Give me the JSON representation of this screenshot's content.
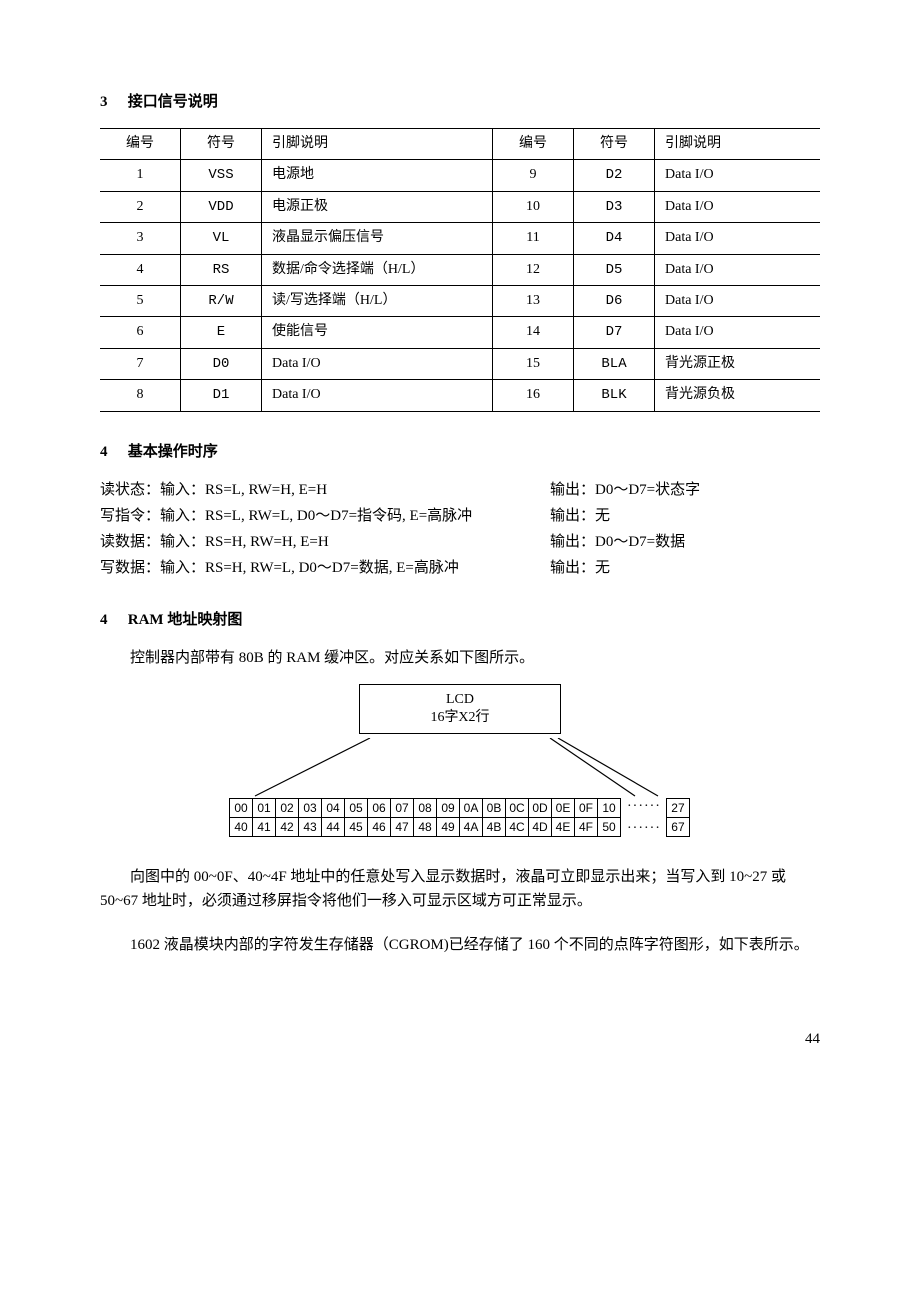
{
  "sections": {
    "s3": {
      "num": "3",
      "title": "接口信号说明"
    },
    "s4a": {
      "num": "4",
      "title": "基本操作时序"
    },
    "s4b": {
      "num": "4",
      "title": "RAM 地址映射图"
    }
  },
  "pin_table": {
    "headers": [
      "编号",
      "符号",
      "引脚说明",
      "编号",
      "符号",
      "引脚说明"
    ],
    "rows": [
      [
        "1",
        "VSS",
        "电源地",
        "9",
        "D2",
        "Data I/O"
      ],
      [
        "2",
        "VDD",
        "电源正极",
        "10",
        "D3",
        "Data I/O"
      ],
      [
        "3",
        "VL",
        "液晶显示偏压信号",
        "11",
        "D4",
        "Data I/O"
      ],
      [
        "4",
        "RS",
        "数据/命令选择端（H/L）",
        "12",
        "D5",
        "Data I/O"
      ],
      [
        "5",
        "R/W",
        "读/写选择端（H/L）",
        "13",
        "D6",
        "Data I/O"
      ],
      [
        "6",
        "E",
        "使能信号",
        "14",
        "D7",
        "Data I/O"
      ],
      [
        "7",
        "D0",
        "Data I/O",
        "15",
        "BLA",
        "背光源正极"
      ],
      [
        "8",
        "D1",
        "Data I/O",
        "16",
        "BLK",
        "背光源负极"
      ]
    ]
  },
  "timing": [
    {
      "in": "读状态：输入：RS=L, RW=H, E=H",
      "out": "输出：D0～D7=状态字"
    },
    {
      "in": "写指令：输入：RS=L, RW=L, D0～D7=指令码, E=高脉冲",
      "out": "输出：无"
    },
    {
      "in": "读数据：输入：RS=H, RW=H, E=H",
      "out": "输出：D0～D7=数据"
    },
    {
      "in": "写数据：输入：RS=H, RW=L, D0～D7=数据, E=高脉冲",
      "out": "输出：无"
    }
  ],
  "ram_text": "控制器内部带有 80B 的 RAM 缓冲区。对应关系如下图所示。",
  "lcd_box": {
    "l1": "LCD",
    "l2": "16字X2行"
  },
  "addr_rows": {
    "top": [
      "00",
      "01",
      "02",
      "03",
      "04",
      "05",
      "06",
      "07",
      "08",
      "09",
      "0A",
      "0B",
      "0C",
      "0D",
      "0E",
      "0F",
      "10"
    ],
    "bottom": [
      "40",
      "41",
      "42",
      "43",
      "44",
      "45",
      "46",
      "47",
      "48",
      "49",
      "4A",
      "4B",
      "4C",
      "4D",
      "4E",
      "4F",
      "50"
    ],
    "dots": "······",
    "top_end": "27",
    "bottom_end": "67"
  },
  "para1": "向图中的 00~0F、40~4F 地址中的任意处写入显示数据时，液晶可立即显示出来；当写入到 10~27 或 50~67 地址时，必须通过移屏指令将他们一移入可显示区域方可正常显示。",
  "para2": "1602 液晶模块内部的字符发生存储器（CGROM)已经存储了 160 个不同的点阵字符图形，如下表所示。",
  "page_number": "44"
}
